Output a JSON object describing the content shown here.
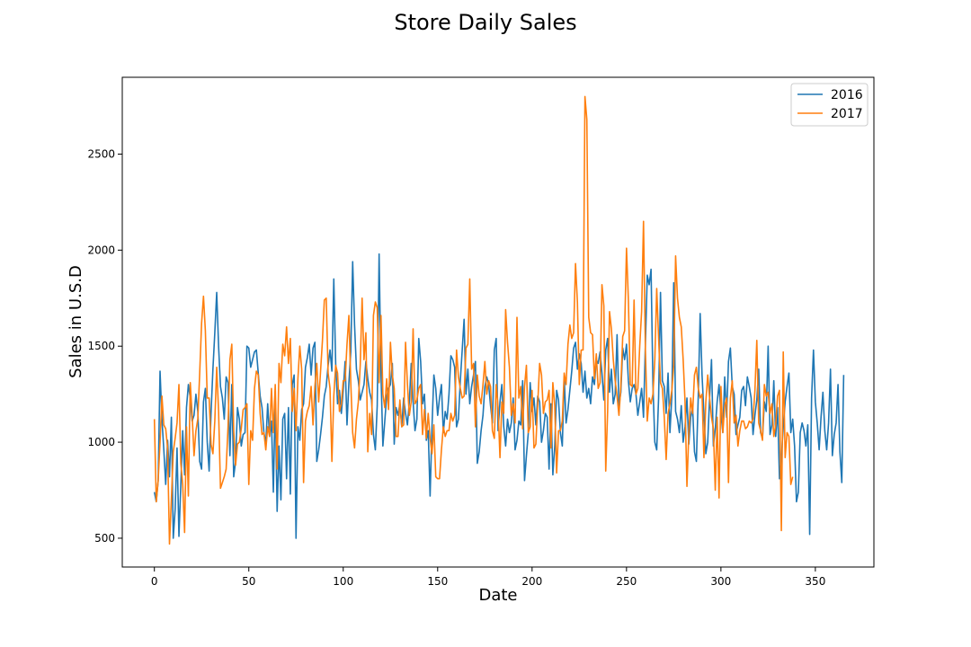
{
  "chart_data": {
    "type": "line",
    "title": "Store Daily Sales",
    "xlabel": "Date",
    "ylabel": "Sales in U.S.D",
    "xlim": [
      -17,
      381
    ],
    "ylim": [
      350,
      2900
    ],
    "xticks": [
      0,
      50,
      100,
      150,
      200,
      250,
      300,
      350
    ],
    "yticks": [
      500,
      1000,
      1500,
      2000,
      2500
    ],
    "legend": "top-right",
    "grid": false,
    "x": "day index 0-363",
    "series": [
      {
        "name": "2016",
        "color": "#1f77b4",
        "values": [
          740,
          690,
          800,
          1370,
          1120,
          960,
          780,
          1010,
          820,
          1130,
          500,
          650,
          970,
          510,
          780,
          1060,
          830,
          1180,
          1300,
          1230,
          1110,
          1140,
          1250,
          1160,
          900,
          860,
          1210,
          1280,
          1000,
          850,
          1150,
          1380,
          1570,
          1780,
          1500,
          1290,
          1230,
          1120,
          1340,
          1310,
          930,
          1300,
          820,
          900,
          1180,
          1120,
          980,
          1040,
          1050,
          1500,
          1490,
          1390,
          1430,
          1470,
          1480,
          1360,
          1240,
          1180,
          1050,
          990,
          1200,
          1030,
          1110,
          740,
          1230,
          640,
          980,
          700,
          1120,
          1150,
          810,
          1180,
          730,
          1300,
          1350,
          500,
          1080,
          1010,
          1170,
          1200,
          1390,
          1440,
          1510,
          1350,
          1490,
          1520,
          900,
          960,
          1040,
          1130,
          1240,
          1290,
          1400,
          1480,
          1370,
          1850,
          1410,
          1200,
          1270,
          1150,
          1270,
          1420,
          1090,
          1310,
          1470,
          1940,
          1610,
          1380,
          1320,
          1220,
          1260,
          1300,
          1420,
          1330,
          1260,
          1220,
          1040,
          960,
          1190,
          1980,
          1350,
          980,
          1110,
          1240,
          1280,
          1300,
          1410,
          990,
          1180,
          1140,
          1200,
          1080,
          1230,
          1150,
          1090,
          1210,
          1410,
          1210,
          1060,
          1120,
          1540,
          1420,
          1200,
          1250,
          1010,
          1060,
          720,
          1080,
          1350,
          1280,
          1140,
          1230,
          1300,
          1050,
          1160,
          1120,
          1250,
          1450,
          1430,
          1390,
          1080,
          1120,
          1320,
          1480,
          1640,
          1250,
          1380,
          1200,
          1290,
          1350,
          1420,
          890,
          950,
          1060,
          1140,
          1290,
          1340,
          1300,
          1190,
          1100,
          1480,
          1540,
          1060,
          1210,
          1300,
          1080,
          980,
          1120,
          1050,
          1100,
          1230,
          960,
          1010,
          1110,
          1090,
          1320,
          800,
          930,
          1050,
          1310,
          1160,
          1230,
          1090,
          1240,
          1210,
          1000,
          1060,
          1150,
          1130,
          860,
          1200,
          830,
          980,
          1270,
          1220,
          1050,
          980,
          1340,
          1100,
          1170,
          1270,
          1370,
          1490,
          1520,
          1380,
          1460,
          1410,
          1260,
          1370,
          1230,
          1280,
          1200,
          1340,
          1300,
          1430,
          1410,
          1470,
          1360,
          1220,
          1480,
          1540,
          1260,
          1380,
          1200,
          1250,
          1560,
          1190,
          1260,
          1490,
          1430,
          1510,
          1320,
          1210,
          1280,
          1300,
          1250,
          1140,
          1210,
          1280,
          1130,
          1510,
          1870,
          1820,
          1900,
          1300,
          1000,
          960,
          1230,
          1780,
          1320,
          1290,
          1150,
          1360,
          1050,
          1240,
          1830,
          1160,
          1120,
          1050,
          1190,
          1000,
          1080,
          1230,
          990,
          1130,
          1180,
          950,
          900,
          1240,
          1670,
          1350,
          1150,
          940,
          1000,
          1230,
          1430,
          980,
          1070,
          1210,
          1300,
          1150,
          1050,
          1340,
          1130,
          1420,
          1490,
          1290,
          1250,
          1040,
          1090,
          1130,
          1270,
          1290,
          1190,
          1340,
          1290,
          1230,
          1040,
          1140,
          1220,
          1380,
          1050,
          1020,
          1210,
          1160,
          1500,
          1040,
          1090,
          1320,
          1030,
          1180,
          810,
          920,
          1080,
          1210,
          1290,
          1360,
          1050,
          1120,
          980,
          690,
          740,
          1050,
          1100,
          1060,
          980,
          1090,
          520,
          1230,
          1480,
          1210,
          1100,
          960,
          1130,
          1260,
          1060,
          960,
          1100,
          1380,
          930,
          1040,
          1100,
          1300,
          950,
          790,
          1350
        ]
      },
      {
        "name": "2017",
        "color": "#ff7f0e",
        "values": [
          1120,
          690,
          800,
          1000,
          1240,
          1090,
          1070,
          970,
          470,
          700,
          950,
          1020,
          1100,
          1300,
          890,
          780,
          530,
          1080,
          720,
          1310,
          1140,
          930,
          1060,
          1120,
          1360,
          1620,
          1760,
          1580,
          1230,
          1230,
          990,
          940,
          1110,
          1390,
          1160,
          760,
          790,
          820,
          860,
          1080,
          1430,
          1510,
          1060,
          880,
          990,
          1000,
          1070,
          1170,
          1180,
          1200,
          780,
          1060,
          1010,
          1280,
          1370,
          1350,
          1150,
          1040,
          1050,
          960,
          1080,
          1030,
          1280,
          1050,
          1300,
          860,
          1410,
          1310,
          1510,
          1450,
          1600,
          1410,
          1540,
          1160,
          1280,
          1060,
          1330,
          1500,
          1380,
          790,
          1110,
          1160,
          1190,
          1290,
          1090,
          1290,
          1410,
          1210,
          1370,
          1530,
          1740,
          1750,
          1360,
          1280,
          900,
          1240,
          1400,
          1360,
          1160,
          1200,
          1320,
          1320,
          1510,
          1660,
          1310,
          1050,
          970,
          1120,
          1210,
          1400,
          1750,
          1430,
          1570,
          950,
          1150,
          1040,
          1660,
          1730,
          1700,
          1310,
          1660,
          1250,
          1180,
          1330,
          1170,
          1520,
          1350,
          1280,
          1030,
          1030,
          1220,
          1080,
          1090,
          1520,
          1300,
          1140,
          1210,
          1590,
          1200,
          1220,
          1280,
          1300,
          1040,
          1170,
          1020,
          1150,
          1020,
          940,
          1090,
          820,
          810,
          810,
          960,
          1080,
          1030,
          1060,
          1060,
          1150,
          1110,
          1140,
          1480,
          1340,
          1280,
          1230,
          1240,
          1490,
          1510,
          1850,
          1380,
          1410,
          1080,
          1350,
          1240,
          1200,
          1300,
          1420,
          1250,
          1320,
          1290,
          1060,
          1020,
          1300,
          1180,
          920,
          1210,
          1150,
          1690,
          1520,
          1390,
          1140,
          1200,
          1100,
          1650,
          1230,
          1290,
          1070,
          1290,
          1400,
          1050,
          1080,
          1270,
          970,
          990,
          1200,
          1410,
          1350,
          1150,
          1210,
          1220,
          1270,
          970,
          1310,
          1190,
          840,
          1060,
          1060,
          1110,
          1360,
          1300,
          1510,
          1610,
          1540,
          1570,
          1930,
          1730,
          1300,
          1480,
          1480,
          2800,
          2680,
          1650,
          1570,
          1560,
          1330,
          1460,
          1280,
          1310,
          1820,
          1710,
          850,
          1160,
          1680,
          1590,
          1430,
          1320,
          1240,
          1140,
          1290,
          1550,
          1580,
          2010,
          1740,
          1300,
          1290,
          1740,
          1250,
          1280,
          1500,
          1680,
          2150,
          1480,
          1110,
          1230,
          1200,
          1250,
          1430,
          1800,
          1540,
          1310,
          1280,
          1130,
          910,
          1150,
          1200,
          1270,
          1400,
          1970,
          1750,
          1650,
          1600,
          1430,
          1210,
          770,
          1050,
          1230,
          1150,
          1350,
          1390,
          1280,
          1230,
          1250,
          920,
          1210,
          1350,
          1230,
          1130,
          1070,
          750,
          1130,
          710,
          1290,
          1050,
          1190,
          1230,
          790,
          1230,
          1320,
          1100,
          1140,
          980,
          1060,
          1110,
          1110,
          1070,
          1080,
          1110,
          1100,
          1120,
          1270,
          1530,
          1100,
          1060,
          1010,
          1300,
          1240,
          1260,
          1150,
          1200,
          1030,
          1090,
          1240,
          1270,
          540,
          1470,
          920,
          1050,
          1030,
          780,
          820
        ]
      }
    ]
  }
}
